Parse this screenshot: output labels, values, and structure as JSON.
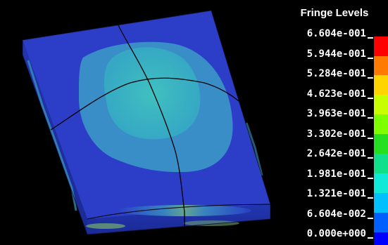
{
  "legend": {
    "title": "Fringe Levels",
    "levels": [
      "6.604e-001",
      "5.944e-001",
      "5.284e-001",
      "4.623e-001",
      "3.963e-001",
      "3.302e-001",
      "2.642e-001",
      "1.981e-001",
      "1.321e-001",
      "6.604e-002",
      "0.000e+000"
    ],
    "colors": [
      "#ff0000",
      "#ff7a00",
      "#ffd400",
      "#c8ff00",
      "#7dff00",
      "#25e020",
      "#10e08a",
      "#10e8d8",
      "#00c0ff",
      "#0060ff",
      "#0000ff"
    ]
  },
  "viewport": {
    "plate_color": "#2c3ec8",
    "inner_fringe_color": "#3890c4",
    "core_fringe_color": "#3ab4c0"
  }
}
